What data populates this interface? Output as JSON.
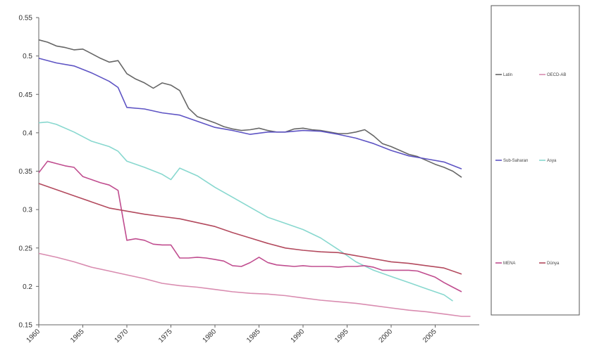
{
  "chart_data": {
    "type": "line",
    "title": "",
    "xlabel": "",
    "ylabel": "",
    "xlim": [
      1960,
      2010
    ],
    "ylim": [
      0.15,
      0.55
    ],
    "grid": false,
    "legend_position": "right",
    "x_ticks": [
      1960,
      1965,
      1970,
      1975,
      1980,
      1985,
      1990,
      1995,
      2000,
      2005
    ],
    "y_ticks": [
      0.15,
      0.2,
      0.25,
      0.3,
      0.35,
      0.4,
      0.45,
      0.5,
      0.55
    ],
    "x_tick_labels": [
      "1960",
      "1965",
      "1970",
      "1975",
      "1980",
      "1985",
      "1990",
      "1995",
      "2000",
      "2005"
    ],
    "y_tick_labels": [
      "0.15",
      "0.2",
      "0.25",
      "0.3",
      "0.35",
      "0.4",
      "0.45",
      "0.5",
      "0.55"
    ],
    "series": [
      {
        "name": "Latin",
        "color": "#666666",
        "legend_col": 0,
        "legend_row": 0,
        "points": [
          [
            1960,
            0.521
          ],
          [
            1961,
            0.518
          ],
          [
            1962,
            0.513
          ],
          [
            1963,
            0.511
          ],
          [
            1964,
            0.508
          ],
          [
            1965,
            0.509
          ],
          [
            1966,
            0.503
          ],
          [
            1967,
            0.497
          ],
          [
            1968,
            0.492
          ],
          [
            1969,
            0.494
          ],
          [
            1970,
            0.477
          ],
          [
            1971,
            0.47
          ],
          [
            1972,
            0.465
          ],
          [
            1973,
            0.458
          ],
          [
            1974,
            0.465
          ],
          [
            1975,
            0.462
          ],
          [
            1976,
            0.455
          ],
          [
            1977,
            0.432
          ],
          [
            1978,
            0.421
          ],
          [
            1979,
            0.417
          ],
          [
            1980,
            0.413
          ],
          [
            1981,
            0.408
          ],
          [
            1982,
            0.405
          ],
          [
            1983,
            0.403
          ],
          [
            1984,
            0.404
          ],
          [
            1985,
            0.406
          ],
          [
            1986,
            0.403
          ],
          [
            1987,
            0.401
          ],
          [
            1988,
            0.401
          ],
          [
            1989,
            0.405
          ],
          [
            1990,
            0.406
          ],
          [
            1991,
            0.404
          ],
          [
            1992,
            0.403
          ],
          [
            1993,
            0.401
          ],
          [
            1994,
            0.399
          ],
          [
            1995,
            0.399
          ],
          [
            1996,
            0.401
          ],
          [
            1997,
            0.404
          ],
          [
            1998,
            0.396
          ],
          [
            1999,
            0.386
          ],
          [
            2000,
            0.382
          ],
          [
            2001,
            0.377
          ],
          [
            2002,
            0.372
          ],
          [
            2003,
            0.369
          ],
          [
            2004,
            0.364
          ],
          [
            2005,
            0.359
          ],
          [
            2006,
            0.355
          ],
          [
            2007,
            0.35
          ],
          [
            2008,
            0.342
          ]
        ]
      },
      {
        "name": "OECD-AB",
        "color": "#d98cb0",
        "legend_col": 1,
        "legend_row": 0,
        "points": [
          [
            1960,
            0.243
          ],
          [
            1962,
            0.238
          ],
          [
            1964,
            0.232
          ],
          [
            1966,
            0.225
          ],
          [
            1968,
            0.22
          ],
          [
            1970,
            0.215
          ],
          [
            1972,
            0.21
          ],
          [
            1974,
            0.204
          ],
          [
            1976,
            0.201
          ],
          [
            1978,
            0.199
          ],
          [
            1980,
            0.196
          ],
          [
            1982,
            0.193
          ],
          [
            1984,
            0.191
          ],
          [
            1986,
            0.19
          ],
          [
            1988,
            0.188
          ],
          [
            1990,
            0.185
          ],
          [
            1992,
            0.182
          ],
          [
            1994,
            0.18
          ],
          [
            1996,
            0.178
          ],
          [
            1998,
            0.175
          ],
          [
            2000,
            0.172
          ],
          [
            2002,
            0.169
          ],
          [
            2004,
            0.167
          ],
          [
            2006,
            0.164
          ],
          [
            2008,
            0.161
          ],
          [
            2009,
            0.161
          ]
        ]
      },
      {
        "name": "Sub-Saharan",
        "color": "#5e54c4",
        "legend_col": 0,
        "legend_row": 1,
        "points": [
          [
            1960,
            0.497
          ],
          [
            1962,
            0.491
          ],
          [
            1964,
            0.487
          ],
          [
            1966,
            0.478
          ],
          [
            1968,
            0.467
          ],
          [
            1969,
            0.459
          ],
          [
            1970,
            0.433
          ],
          [
            1972,
            0.431
          ],
          [
            1974,
            0.426
          ],
          [
            1976,
            0.423
          ],
          [
            1978,
            0.415
          ],
          [
            1980,
            0.407
          ],
          [
            1982,
            0.403
          ],
          [
            1984,
            0.398
          ],
          [
            1986,
            0.401
          ],
          [
            1988,
            0.401
          ],
          [
            1990,
            0.403
          ],
          [
            1992,
            0.402
          ],
          [
            1994,
            0.398
          ],
          [
            1996,
            0.393
          ],
          [
            1998,
            0.386
          ],
          [
            2000,
            0.377
          ],
          [
            2002,
            0.37
          ],
          [
            2004,
            0.366
          ],
          [
            2006,
            0.362
          ],
          [
            2008,
            0.353
          ]
        ]
      },
      {
        "name": "Asya",
        "color": "#88d8cf",
        "legend_col": 1,
        "legend_row": 1,
        "points": [
          [
            1960,
            0.413
          ],
          [
            1961,
            0.414
          ],
          [
            1962,
            0.411
          ],
          [
            1964,
            0.401
          ],
          [
            1966,
            0.389
          ],
          [
            1968,
            0.382
          ],
          [
            1969,
            0.376
          ],
          [
            1970,
            0.363
          ],
          [
            1972,
            0.355
          ],
          [
            1974,
            0.346
          ],
          [
            1975,
            0.339
          ],
          [
            1976,
            0.354
          ],
          [
            1978,
            0.344
          ],
          [
            1980,
            0.329
          ],
          [
            1982,
            0.316
          ],
          [
            1984,
            0.303
          ],
          [
            1986,
            0.29
          ],
          [
            1988,
            0.282
          ],
          [
            1990,
            0.274
          ],
          [
            1992,
            0.263
          ],
          [
            1994,
            0.248
          ],
          [
            1996,
            0.232
          ],
          [
            1998,
            0.221
          ],
          [
            2000,
            0.213
          ],
          [
            2002,
            0.205
          ],
          [
            2004,
            0.197
          ],
          [
            2006,
            0.189
          ],
          [
            2007,
            0.181
          ]
        ]
      },
      {
        "name": "MENA",
        "color": "#c04d8f",
        "legend_col": 0,
        "legend_row": 2,
        "points": [
          [
            1960,
            0.348
          ],
          [
            1961,
            0.363
          ],
          [
            1962,
            0.36
          ],
          [
            1963,
            0.357
          ],
          [
            1964,
            0.355
          ],
          [
            1965,
            0.343
          ],
          [
            1966,
            0.339
          ],
          [
            1967,
            0.335
          ],
          [
            1968,
            0.332
          ],
          [
            1969,
            0.325
          ],
          [
            1970,
            0.26
          ],
          [
            1971,
            0.262
          ],
          [
            1972,
            0.26
          ],
          [
            1973,
            0.255
          ],
          [
            1974,
            0.254
          ],
          [
            1975,
            0.254
          ],
          [
            1976,
            0.237
          ],
          [
            1977,
            0.237
          ],
          [
            1978,
            0.238
          ],
          [
            1979,
            0.237
          ],
          [
            1980,
            0.235
          ],
          [
            1981,
            0.233
          ],
          [
            1982,
            0.227
          ],
          [
            1983,
            0.226
          ],
          [
            1984,
            0.231
          ],
          [
            1985,
            0.238
          ],
          [
            1986,
            0.231
          ],
          [
            1987,
            0.228
          ],
          [
            1988,
            0.227
          ],
          [
            1989,
            0.226
          ],
          [
            1990,
            0.227
          ],
          [
            1991,
            0.226
          ],
          [
            1992,
            0.226
          ],
          [
            1993,
            0.226
          ],
          [
            1994,
            0.225
          ],
          [
            1995,
            0.226
          ],
          [
            1996,
            0.226
          ],
          [
            1997,
            0.227
          ],
          [
            1998,
            0.225
          ],
          [
            1999,
            0.221
          ],
          [
            2000,
            0.221
          ],
          [
            2001,
            0.221
          ],
          [
            2002,
            0.221
          ],
          [
            2003,
            0.22
          ],
          [
            2004,
            0.216
          ],
          [
            2005,
            0.212
          ],
          [
            2006,
            0.205
          ],
          [
            2007,
            0.199
          ],
          [
            2008,
            0.193
          ]
        ]
      },
      {
        "name": "Dünya",
        "color": "#b34a5e",
        "legend_col": 1,
        "legend_row": 2,
        "points": [
          [
            1960,
            0.334
          ],
          [
            1962,
            0.326
          ],
          [
            1964,
            0.318
          ],
          [
            1966,
            0.31
          ],
          [
            1968,
            0.302
          ],
          [
            1970,
            0.298
          ],
          [
            1972,
            0.294
          ],
          [
            1974,
            0.291
          ],
          [
            1976,
            0.288
          ],
          [
            1978,
            0.283
          ],
          [
            1980,
            0.278
          ],
          [
            1982,
            0.27
          ],
          [
            1984,
            0.263
          ],
          [
            1986,
            0.256
          ],
          [
            1988,
            0.25
          ],
          [
            1990,
            0.247
          ],
          [
            1992,
            0.245
          ],
          [
            1994,
            0.244
          ],
          [
            1996,
            0.24
          ],
          [
            1998,
            0.236
          ],
          [
            2000,
            0.232
          ],
          [
            2002,
            0.23
          ],
          [
            2004,
            0.227
          ],
          [
            2006,
            0.224
          ],
          [
            2008,
            0.216
          ]
        ]
      }
    ]
  }
}
